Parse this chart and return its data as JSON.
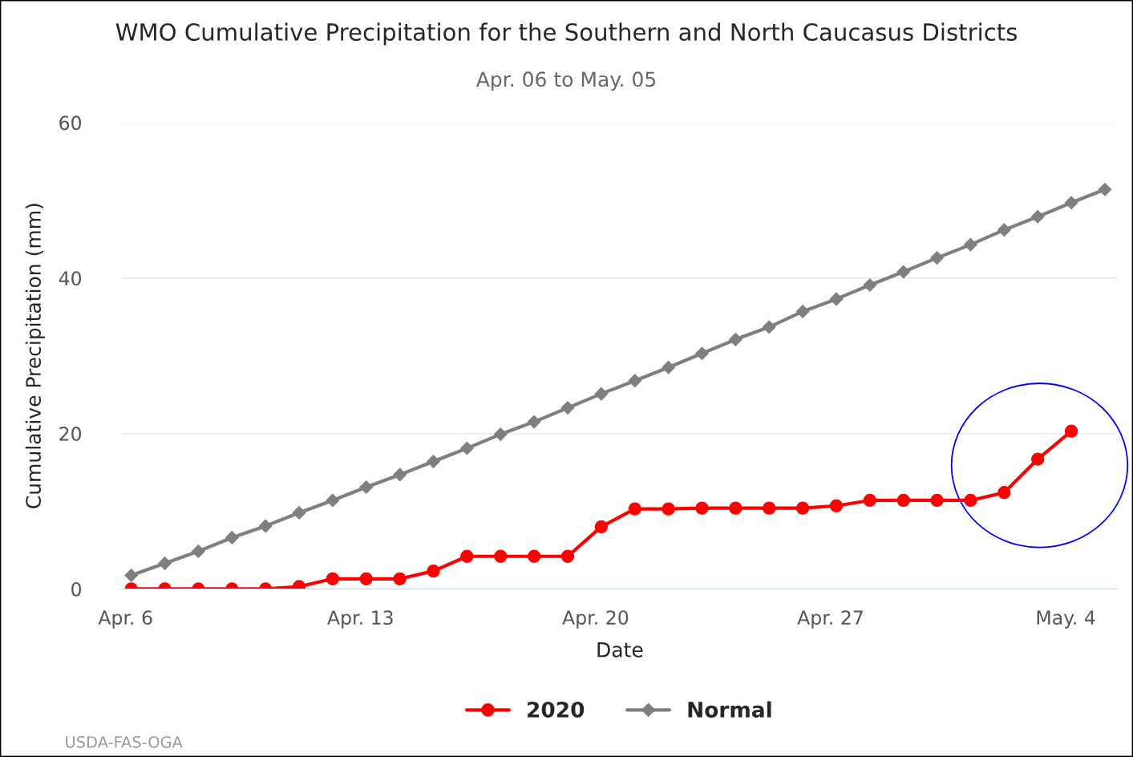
{
  "chart_data": {
    "type": "line",
    "title": "WMO Cumulative Precipitation for the Southern and North Caucasus Districts",
    "subtitle": "Apr. 06 to May. 05",
    "xlabel": "Date",
    "ylabel": "Cumulative Precipitation (mm)",
    "x": [
      "2020-04-06T04:00",
      "2020-04-07T04:00",
      "2020-04-08T04:00",
      "2020-04-09T04:00",
      "2020-04-10T04:00",
      "2020-04-11T04:00",
      "2020-04-12T04:00",
      "2020-04-13T04:00",
      "2020-04-14T04:00",
      "2020-04-15T04:00",
      "2020-04-16T04:00",
      "2020-04-17T04:00",
      "2020-04-18T04:00",
      "2020-04-19T04:00",
      "2020-04-20T04:00",
      "2020-04-21T04:00",
      "2020-04-22T04:00",
      "2020-04-23T04:00",
      "2020-04-24T04:00",
      "2020-04-25T04:00",
      "2020-04-26T04:00",
      "2020-04-27T04:00",
      "2020-04-28T04:00",
      "2020-04-29T04:00",
      "2020-04-30T04:00",
      "2020-05-01T04:00",
      "2020-05-02T04:00",
      "2020-05-03T04:00",
      "2020-05-04T04:00",
      "2020-05-05T04:00"
    ],
    "series": [
      {
        "name": "2020",
        "color": "#ff0000",
        "marker": "circle",
        "values": [
          0,
          0,
          0,
          0,
          0,
          0.3,
          1.3,
          1.3,
          1.3,
          2.3,
          4.2,
          4.2,
          4.2,
          4.2,
          8.0,
          10.3,
          10.3,
          10.4,
          10.4,
          10.4,
          10.4,
          10.7,
          11.4,
          11.4,
          11.4,
          11.4,
          12.4,
          16.7,
          20.3,
          null
        ]
      },
      {
        "name": "Normal",
        "color": "#7f7f7f",
        "marker": "diamond",
        "values": [
          1.75,
          3.3,
          4.85,
          6.6,
          8.1,
          9.8,
          11.4,
          13.1,
          14.7,
          16.4,
          18.1,
          19.9,
          21.5,
          23.3,
          25.1,
          26.8,
          28.5,
          30.3,
          32.1,
          33.7,
          35.7,
          37.3,
          39.1,
          40.8,
          42.6,
          44.3,
          46.2,
          47.9,
          49.7,
          51.4
        ]
      }
    ],
    "xlim": [
      "2020-04-05T21:40",
      "2020-05-05T12:45"
    ],
    "xticks": [
      {
        "value": "2020-04-06",
        "label": "Apr. 6"
      },
      {
        "value": "2020-04-13",
        "label": "Apr. 13"
      },
      {
        "value": "2020-04-20",
        "label": "Apr. 20"
      },
      {
        "value": "2020-04-27",
        "label": "Apr. 27"
      },
      {
        "value": "2020-05-04",
        "label": "May. 4"
      }
    ],
    "ylim": [
      0,
      60
    ],
    "yticks": [
      0,
      20,
      40,
      60
    ],
    "grid": "y",
    "legend": "bottom",
    "line_style": "solid",
    "annotations": [
      "USDA-FAS-OGA"
    ]
  }
}
